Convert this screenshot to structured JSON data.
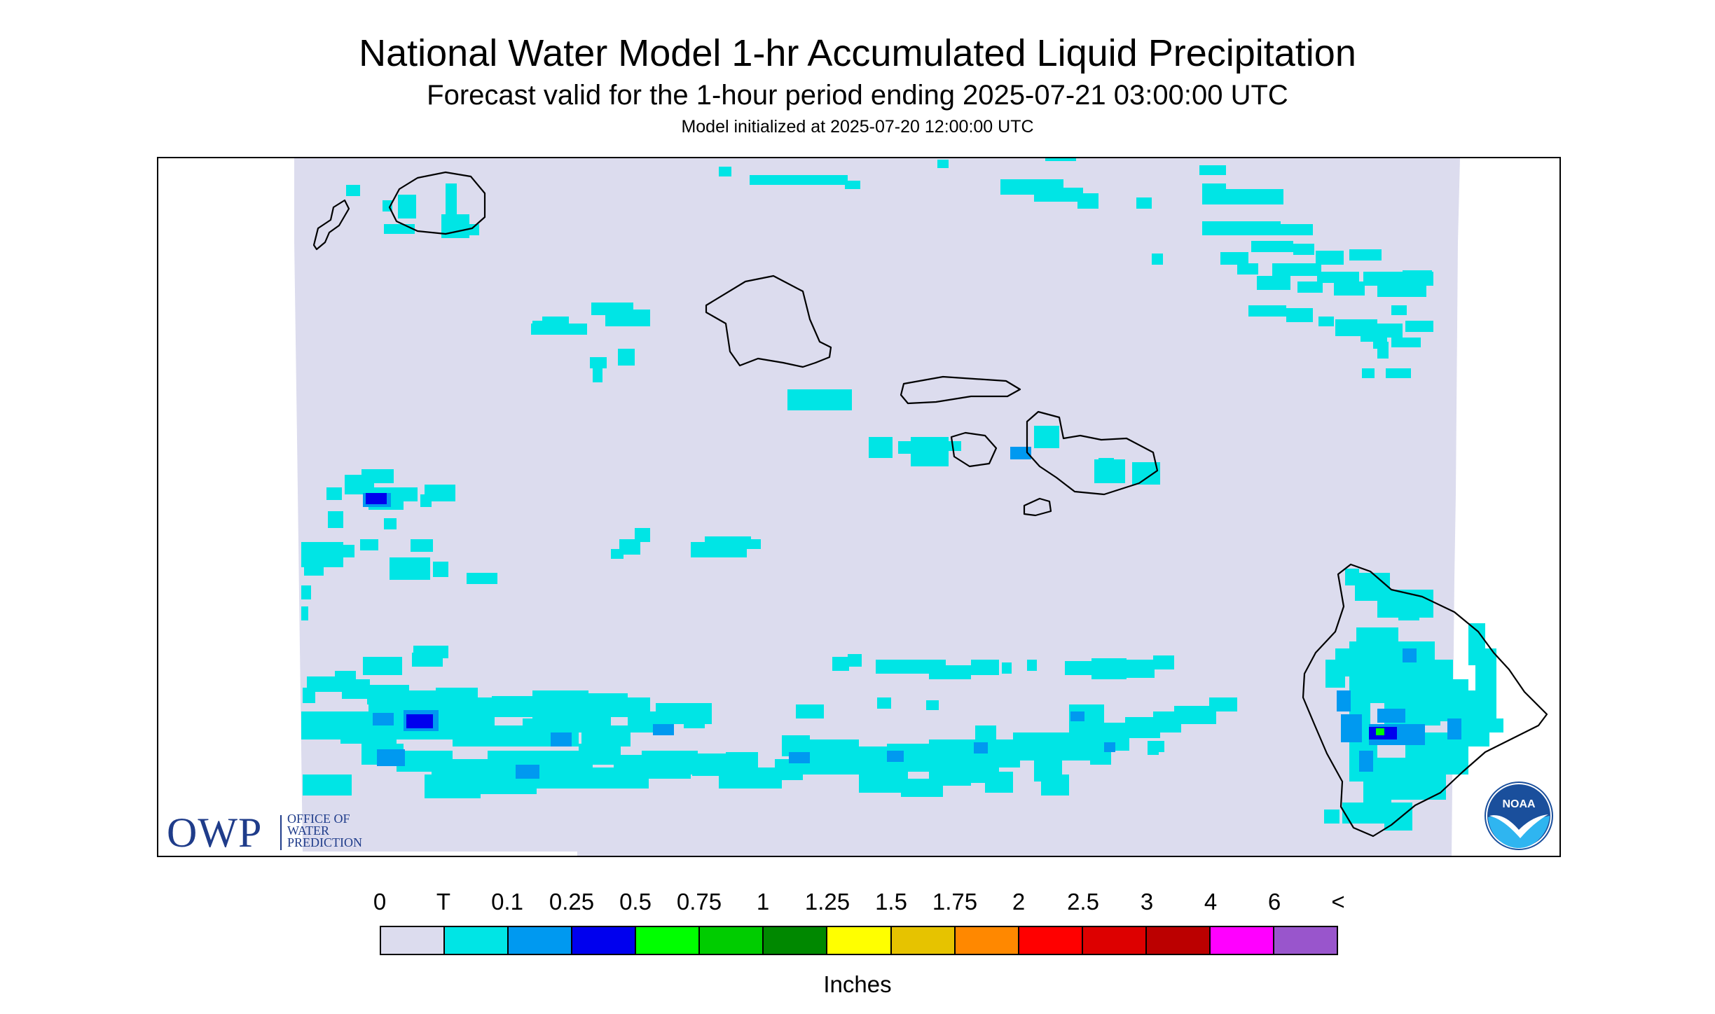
{
  "header": {
    "title": "National Water Model 1-hr Accumulated Liquid Precipitation",
    "subtitle": "Forecast valid for the 1-hour period ending 2025-07-21 03:00:00 UTC",
    "initialized": "Model initialized at 2025-07-20 12:00:00 UTC"
  },
  "legend": {
    "labels": [
      "0",
      "T",
      "0.1",
      "0.25",
      "0.5",
      "0.75",
      "1",
      "1.25",
      "1.5",
      "1.75",
      "2",
      "2.5",
      "3",
      "4",
      "6",
      "<"
    ],
    "colors": [
      "#dcdcee",
      "#00e5e5",
      "#0099f0",
      "#0000ee",
      "#00ff00",
      "#00cc00",
      "#008800",
      "#ffff00",
      "#e6c300",
      "#ff8800",
      "#ff0000",
      "#dd0000",
      "#bb0000",
      "#ff00ff",
      "#9955cc"
    ],
    "units": "Inches"
  },
  "logos": {
    "owp_big": "OWP",
    "owp_line1": "OFFICE OF",
    "owp_line2": "WATER",
    "owp_line3": "PREDICTION",
    "noaa": "NOAA"
  },
  "map": {
    "background_color": "#dcdcee",
    "trace_color": "#00e5e5",
    "light_color": "#0099f0",
    "heavy_color": "#0000ee",
    "peak_color": "#00ff00",
    "coast_color": "#000000"
  }
}
